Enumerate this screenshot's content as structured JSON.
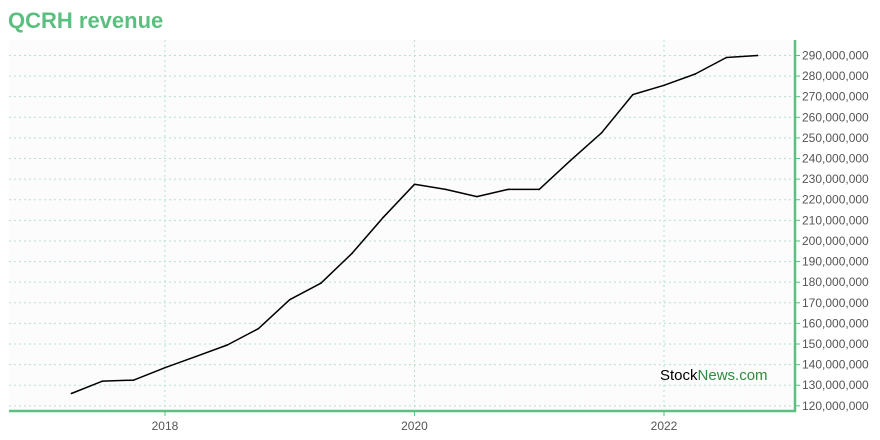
{
  "colors": {
    "accent": "#5bbf7f",
    "line": "#000000",
    "grid": "#b7e2cb",
    "plot_background": "#fcfcfc",
    "watermark_primary": "#000000",
    "watermark_secondary": "#2e8b3e"
  },
  "watermark": {
    "part1": "Stock",
    "part2": "News.com"
  },
  "chart_data": {
    "type": "line",
    "title": "QCRH revenue",
    "xlabel": "",
    "ylabel": "",
    "x_tick_labels": [
      "2018",
      "2020",
      "2022"
    ],
    "x_ticks": [
      2018,
      2020,
      2022
    ],
    "xlim": [
      2016.75,
      2023.05
    ],
    "y_tick_labels": [
      "120,000,000",
      "130,000,000",
      "140,000,000",
      "150,000,000",
      "160,000,000",
      "170,000,000",
      "180,000,000",
      "190,000,000",
      "200,000,000",
      "210,000,000",
      "220,000,000",
      "230,000,000",
      "240,000,000",
      "250,000,000",
      "260,000,000",
      "270,000,000",
      "280,000,000",
      "290,000,000"
    ],
    "y_ticks": [
      120000000,
      130000000,
      140000000,
      150000000,
      160000000,
      170000000,
      180000000,
      190000000,
      200000000,
      210000000,
      220000000,
      230000000,
      240000000,
      250000000,
      260000000,
      270000000,
      280000000,
      290000000
    ],
    "ylim": [
      117500000,
      297500000
    ],
    "grid": true,
    "series": [
      {
        "x": [
          2017.25,
          2017.5,
          2017.75,
          2018.0,
          2018.25,
          2018.5,
          2018.75,
          2019.0,
          2019.25,
          2019.5,
          2019.75,
          2020.0,
          2020.25,
          2020.5,
          2020.75,
          2021.0,
          2021.25,
          2021.5,
          2021.75,
          2022.0,
          2022.25,
          2022.5,
          2022.75
        ],
        "values": [
          126000000,
          132000000,
          132500000,
          138500000,
          144000000,
          149500000,
          157500000,
          171500000,
          179500000,
          194000000,
          211500000,
          227500000,
          225000000,
          221500000,
          225000000,
          225000000,
          239000000,
          252500000,
          271000000,
          275500000,
          281000000,
          289000000,
          290000000
        ]
      }
    ]
  }
}
